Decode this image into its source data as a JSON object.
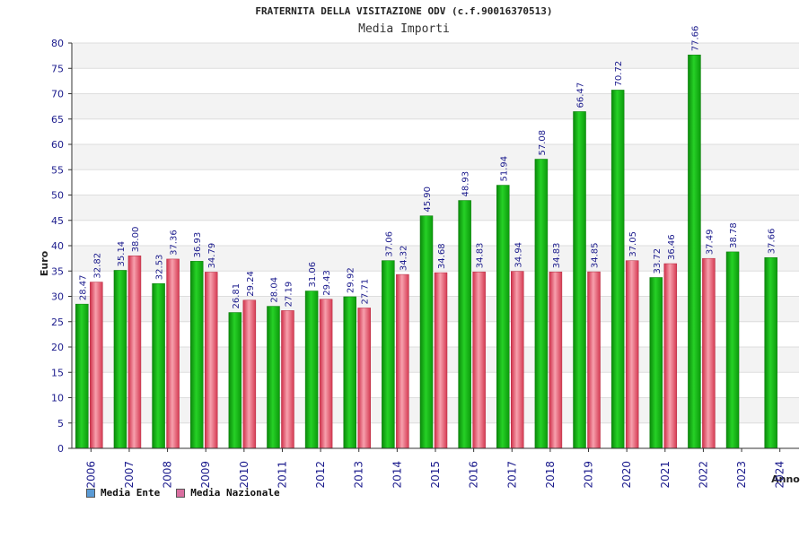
{
  "chart_data": {
    "type": "bar",
    "title": "FRATERNITA DELLA VISITAZIONE ODV (c.f.90016370513)",
    "subtitle": "Media Importi",
    "xlabel": "Anno",
    "ylabel": "Euro",
    "ylim": [
      0,
      80
    ],
    "ytick_step": 5,
    "grid": true,
    "legend_position": "bottom-left",
    "categories": [
      "2006",
      "2007",
      "2008",
      "2009",
      "2010",
      "2011",
      "2012",
      "2013",
      "2014",
      "2015",
      "2016",
      "2017",
      "2018",
      "2019",
      "2020",
      "2021",
      "2022",
      "2023",
      "2024"
    ],
    "series": [
      {
        "name": "Media Ente",
        "color": "#1bb51b",
        "legend_color": "#5b9bd5",
        "values": [
          28.47,
          35.14,
          32.53,
          36.93,
          26.81,
          28.04,
          31.06,
          29.92,
          37.06,
          45.9,
          48.93,
          51.94,
          57.08,
          66.47,
          70.72,
          33.72,
          77.66,
          38.78,
          37.66
        ],
        "labels": [
          "28.47",
          "35.14",
          "32.53",
          "36.93",
          "26.81",
          "28.04",
          "31.06",
          "29.92",
          "37.06",
          "45.90",
          "48.93",
          "51.94",
          "57.08",
          "66.47",
          "70.72",
          "33.72",
          "77.66",
          "38.78",
          "37.66"
        ]
      },
      {
        "name": "Media Nazionale",
        "color": "#e8485c",
        "legend_color": "#d96fa0",
        "values": [
          32.82,
          38.0,
          37.36,
          34.79,
          29.24,
          27.19,
          29.43,
          27.71,
          34.32,
          34.68,
          34.83,
          34.94,
          34.83,
          34.85,
          37.05,
          36.46,
          37.49,
          null,
          null
        ],
        "labels": [
          "32.82",
          "38.00",
          "37.36",
          "34.79",
          "29.24",
          "27.19",
          "29.43",
          "27.71",
          "34.32",
          "34.68",
          "34.83",
          "34.94",
          "34.83",
          "34.85",
          "37.05",
          "36.46",
          "37.49",
          null,
          null
        ]
      }
    ]
  }
}
